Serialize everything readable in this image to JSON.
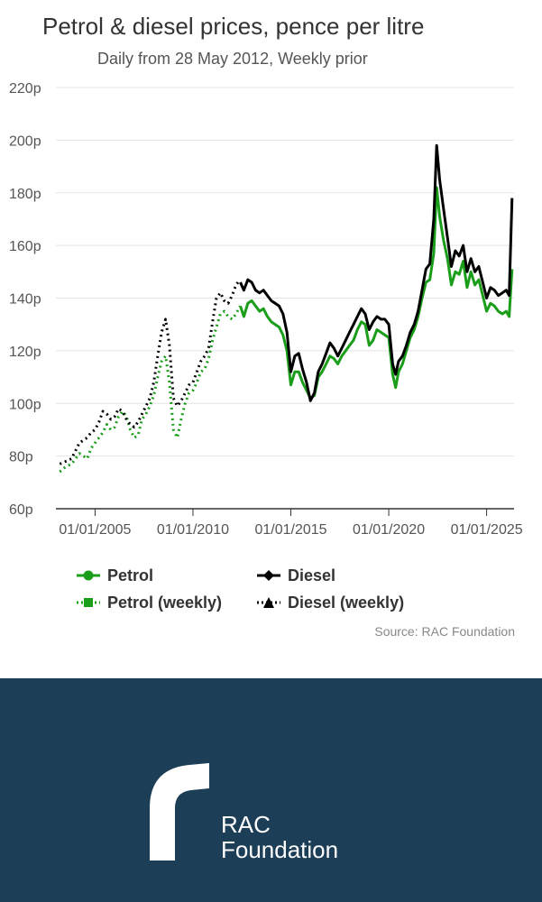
{
  "colors": {
    "petrol": "#1a9e1a",
    "diesel": "#000000",
    "footer_bg": "#1d3e57"
  },
  "chart_data": {
    "type": "line",
    "title": "Petrol & diesel prices, pence per litre",
    "subtitle": "Daily from 28 May 2012, Weekly prior",
    "xlabel": "",
    "ylabel": "",
    "ylim": [
      60,
      220
    ],
    "xlim": [
      2003.0,
      2026.4
    ],
    "y_ticks": [
      "60p",
      "80p",
      "100p",
      "120p",
      "140p",
      "160p",
      "180p",
      "200p",
      "220p"
    ],
    "y_tick_values": [
      60,
      80,
      100,
      120,
      140,
      160,
      180,
      200,
      220
    ],
    "x_ticks": [
      "01/01/2005",
      "01/01/2010",
      "01/01/2015",
      "01/01/2020",
      "01/01/2025"
    ],
    "x_tick_values": [
      2005,
      2010,
      2015,
      2020,
      2025
    ],
    "grid": true,
    "series": [
      {
        "name": "Petrol (weekly)",
        "style": "dotted",
        "color": "#1a9e1a",
        "x": [
          2003.2,
          2003.5,
          2003.8,
          2004.0,
          2004.2,
          2004.4,
          2004.6,
          2004.8,
          2005.0,
          2005.2,
          2005.4,
          2005.6,
          2005.8,
          2006.0,
          2006.2,
          2006.4,
          2006.6,
          2006.8,
          2007.0,
          2007.2,
          2007.4,
          2007.6,
          2007.8,
          2008.0,
          2008.2,
          2008.4,
          2008.6,
          2008.8,
          2009.0,
          2009.2,
          2009.4,
          2009.6,
          2009.8,
          2010.0,
          2010.2,
          2010.4,
          2010.6,
          2010.8,
          2011.0,
          2011.2,
          2011.4,
          2011.6,
          2011.8,
          2012.0,
          2012.2,
          2012.41
        ],
        "values": [
          74,
          76,
          77,
          79,
          81,
          80,
          79,
          83,
          85,
          87,
          89,
          92,
          90,
          91,
          95,
          97,
          95,
          90,
          87,
          88,
          94,
          96,
          99,
          103,
          110,
          116,
          118,
          108,
          90,
          87,
          94,
          100,
          104,
          105,
          108,
          112,
          113,
          117,
          124,
          129,
          134,
          135,
          133,
          132,
          134,
          137
        ]
      },
      {
        "name": "Diesel (weekly)",
        "style": "dotted",
        "color": "#000000",
        "x": [
          2003.2,
          2003.5,
          2003.8,
          2004.0,
          2004.2,
          2004.4,
          2004.6,
          2004.8,
          2005.0,
          2005.2,
          2005.4,
          2005.6,
          2005.8,
          2006.0,
          2006.2,
          2006.4,
          2006.6,
          2006.8,
          2007.0,
          2007.2,
          2007.4,
          2007.6,
          2007.8,
          2008.0,
          2008.2,
          2008.4,
          2008.6,
          2008.8,
          2009.0,
          2009.2,
          2009.4,
          2009.6,
          2009.8,
          2010.0,
          2010.2,
          2010.4,
          2010.6,
          2010.8,
          2011.0,
          2011.2,
          2011.4,
          2011.6,
          2011.8,
          2012.0,
          2012.2,
          2012.41
        ],
        "values": [
          77,
          78,
          79,
          82,
          85,
          86,
          87,
          89,
          90,
          93,
          97,
          96,
          94,
          95,
          98,
          97,
          94,
          92,
          91,
          93,
          96,
          99,
          102,
          108,
          118,
          127,
          132,
          122,
          102,
          99,
          101,
          104,
          107,
          108,
          112,
          116,
          118,
          121,
          131,
          140,
          142,
          139,
          138,
          141,
          145,
          147
        ]
      },
      {
        "name": "Petrol",
        "style": "solid",
        "color": "#1a9e1a",
        "x": [
          2012.42,
          2012.6,
          2012.8,
          2013.0,
          2013.2,
          2013.4,
          2013.6,
          2013.8,
          2014.0,
          2014.2,
          2014.4,
          2014.6,
          2014.8,
          2015.0,
          2015.2,
          2015.4,
          2015.6,
          2015.8,
          2016.0,
          2016.2,
          2016.4,
          2016.6,
          2016.8,
          2017.0,
          2017.2,
          2017.4,
          2017.6,
          2017.8,
          2018.0,
          2018.2,
          2018.4,
          2018.6,
          2018.8,
          2019.0,
          2019.2,
          2019.4,
          2019.6,
          2019.8,
          2020.0,
          2020.2,
          2020.35,
          2020.5,
          2020.7,
          2020.9,
          2021.1,
          2021.3,
          2021.5,
          2021.7,
          2021.9,
          2022.1,
          2022.3,
          2022.45,
          2022.6,
          2022.8,
          2023.0,
          2023.2,
          2023.4,
          2023.6,
          2023.8,
          2024.0,
          2024.2,
          2024.4,
          2024.6,
          2024.8,
          2025.0,
          2025.2,
          2025.4,
          2025.6,
          2025.8,
          2026.0,
          2026.15,
          2026.3
        ],
        "values": [
          137,
          133,
          138,
          139,
          137,
          135,
          136,
          133,
          131,
          130,
          129,
          126,
          120,
          107,
          112,
          112,
          108,
          105,
          102,
          103,
          110,
          112,
          115,
          118,
          117,
          115,
          118,
          120,
          122,
          124,
          128,
          131,
          130,
          122,
          124,
          128,
          127,
          126,
          125,
          111,
          106,
          112,
          115,
          120,
          125,
          128,
          133,
          140,
          146,
          147,
          157,
          182,
          171,
          162,
          155,
          145,
          150,
          149,
          154,
          144,
          150,
          145,
          147,
          141,
          135,
          138,
          137,
          135,
          134,
          135,
          133,
          151
        ],
        "note": "Petrol price line"
      },
      {
        "name": "Diesel",
        "style": "solid",
        "color": "#000000",
        "x": [
          2012.42,
          2012.6,
          2012.8,
          2013.0,
          2013.2,
          2013.4,
          2013.6,
          2013.8,
          2014.0,
          2014.2,
          2014.4,
          2014.6,
          2014.8,
          2015.0,
          2015.2,
          2015.4,
          2015.6,
          2015.8,
          2016.0,
          2016.2,
          2016.4,
          2016.6,
          2016.8,
          2017.0,
          2017.2,
          2017.4,
          2017.6,
          2017.8,
          2018.0,
          2018.2,
          2018.4,
          2018.6,
          2018.8,
          2019.0,
          2019.2,
          2019.4,
          2019.6,
          2019.8,
          2020.0,
          2020.2,
          2020.35,
          2020.5,
          2020.7,
          2020.9,
          2021.1,
          2021.3,
          2021.5,
          2021.7,
          2021.9,
          2022.1,
          2022.3,
          2022.45,
          2022.6,
          2022.8,
          2023.0,
          2023.2,
          2023.4,
          2023.6,
          2023.8,
          2024.0,
          2024.2,
          2024.4,
          2024.6,
          2024.8,
          2025.0,
          2025.2,
          2025.4,
          2025.6,
          2025.8,
          2026.0,
          2026.15,
          2026.3
        ],
        "values": [
          146,
          143,
          147,
          146,
          143,
          142,
          143,
          141,
          139,
          138,
          137,
          134,
          127,
          112,
          118,
          119,
          113,
          108,
          101,
          104,
          112,
          115,
          119,
          123,
          121,
          118,
          121,
          124,
          127,
          130,
          133,
          136,
          134,
          128,
          131,
          133,
          132,
          132,
          130,
          115,
          111,
          116,
          118,
          122,
          127,
          130,
          135,
          143,
          151,
          153,
          170,
          198,
          185,
          174,
          163,
          152,
          158,
          156,
          160,
          150,
          155,
          150,
          152,
          146,
          140,
          144,
          143,
          141,
          142,
          143,
          141,
          178
        ],
        "note": "Diesel price line"
      }
    ],
    "legend": [
      {
        "label": "Petrol",
        "marker": "circle",
        "line": "solid",
        "color": "#1a9e1a"
      },
      {
        "label": "Diesel",
        "marker": "diamond",
        "line": "solid",
        "color": "#000000"
      },
      {
        "label": "Petrol (weekly)",
        "marker": "square",
        "line": "dotted",
        "color": "#1a9e1a"
      },
      {
        "label": "Diesel (weekly)",
        "marker": "triangle",
        "line": "dotted",
        "color": "#000000"
      }
    ],
    "legend_position": "bottom",
    "source": "Source: RAC Foundation"
  },
  "footer": {
    "logo_line1": "RAC",
    "logo_line2": "Foundation"
  }
}
